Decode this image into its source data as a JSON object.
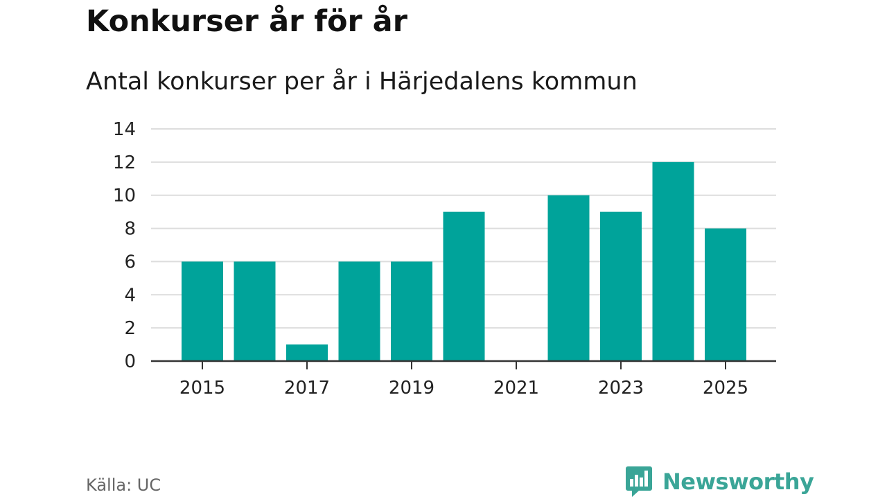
{
  "header": {
    "title": "Konkurser år för år",
    "subtitle": "Antal konkurser per år i Härjedalens kommun"
  },
  "footer": {
    "source": "Källa: UC",
    "brand": "Newsworthy",
    "brand_icon": "bar-chart-speech-bubble-icon"
  },
  "colors": {
    "bar": "#00a39a",
    "grid": "#dddddd",
    "axis": "#333333",
    "brand": "#3aa597"
  },
  "chart_data": {
    "type": "bar",
    "title": "Konkurser år för år",
    "subtitle": "Antal konkurser per år i Härjedalens kommun",
    "categories": [
      2015,
      2016,
      2017,
      2018,
      2019,
      2020,
      2021,
      2022,
      2023,
      2024,
      2025
    ],
    "values": [
      6,
      6,
      1,
      6,
      6,
      9,
      0,
      10,
      9,
      12,
      8
    ],
    "x_tick_labels": [
      "2015",
      "2017",
      "2019",
      "2021",
      "2023",
      "2025"
    ],
    "y_tick_labels": [
      "0",
      "2",
      "4",
      "6",
      "8",
      "10",
      "12",
      "14"
    ],
    "ylim": [
      0,
      14
    ],
    "xlabel": "",
    "ylabel": "",
    "grid": true,
    "legend": "none"
  }
}
